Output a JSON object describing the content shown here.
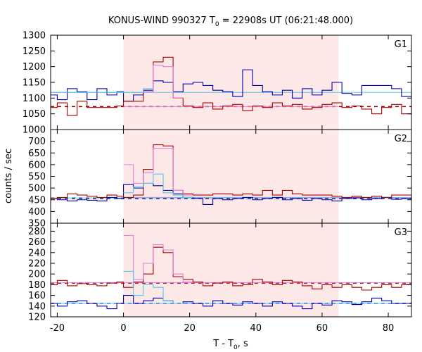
{
  "chart_data": {
    "type": "line",
    "title": "KONUS-WIND 990327 T",
    "title_sub": "0",
    "title_rest": " = 22908s UT (06:21:48.000)",
    "xlabel": "T - T",
    "xlabel_sub": "0",
    "xlabel_rest": ", s",
    "ylabel": "counts / sec",
    "xlim": [
      -22,
      87
    ],
    "x_ticks": [
      -20,
      0,
      20,
      40,
      60,
      80
    ],
    "x_tick_labels": [
      "-20",
      "0",
      "20",
      "40",
      "60",
      "80"
    ],
    "shaded_interval": [
      0,
      65
    ],
    "colors": {
      "shade": "#fde8e8",
      "background_series": "#aa0000",
      "background_level": "#aa0000",
      "total_series": "#0000aa",
      "total_level": "#0000aa",
      "pink_series": "#e080e0",
      "cyan_series": "#55c8e8",
      "pink_level": "#e080e0",
      "cyan_level": "#55c8e8"
    },
    "panels": [
      {
        "label": "G1",
        "ylim": [
          1000,
          1300
        ],
        "y_ticks": [
          1000,
          1050,
          1100,
          1150,
          1200,
          1250,
          1300
        ],
        "y_tick_labels": [
          "1000",
          "1050",
          "1100",
          "1150",
          "1200",
          "1250",
          "1300"
        ],
        "series": [
          {
            "role": "total",
            "x": [
              -22,
              -20,
              -17,
              -14,
              -11,
              -8,
              -5,
              -2,
              0,
              3,
              6,
              9,
              12,
              15,
              18,
              21,
              24,
              27,
              30,
              33,
              36,
              39,
              42,
              45,
              48,
              51,
              54,
              57,
              60,
              63,
              66,
              69,
              72,
              75,
              78,
              81,
              84,
              87
            ],
            "y": [
              1110,
              1095,
              1130,
              1120,
              1095,
              1130,
              1110,
              1120,
              1090,
              1110,
              1125,
              1155,
              1150,
              1120,
              1145,
              1150,
              1140,
              1125,
              1120,
              1105,
              1190,
              1140,
              1120,
              1110,
              1125,
              1100,
              1130,
              1110,
              1125,
              1150,
              1115,
              1110,
              1140,
              1140,
              1140,
              1130,
              1105,
              1135
            ]
          },
          {
            "role": "background",
            "x": [
              -22,
              -20,
              -17,
              -14,
              -11,
              -8,
              -5,
              -2,
              0,
              3,
              6,
              9,
              12,
              15,
              18,
              21,
              24,
              27,
              30,
              33,
              36,
              39,
              42,
              45,
              48,
              51,
              54,
              57,
              60,
              63,
              66,
              69,
              72,
              75,
              78,
              81,
              84,
              87
            ],
            "y": [
              1070,
              1085,
              1045,
              1090,
              1070,
              1070,
              1070,
              1075,
              1090,
              1090,
              1120,
              1215,
              1230,
              1100,
              1075,
              1070,
              1085,
              1065,
              1075,
              1080,
              1060,
              1075,
              1070,
              1085,
              1075,
              1080,
              1065,
              1070,
              1080,
              1085,
              1070,
              1075,
              1065,
              1050,
              1070,
              1080,
              1050,
              1075
            ]
          },
          {
            "role": "pink",
            "x": [
              6,
              9,
              12,
              15
            ],
            "y": [
              1120,
              1205,
              1200,
              1100
            ]
          },
          {
            "role": "cyan",
            "x": [
              -22,
              0,
              3,
              6
            ],
            "y": [
              1118,
              1118,
              1118,
              1130
            ]
          }
        ],
        "levels": [
          {
            "role": "background_level",
            "value": 1073,
            "x_from": -22,
            "x_to": 87,
            "style": "dashed"
          },
          {
            "role": "cyan_level",
            "value": 1118,
            "x_from": -22,
            "x_to": 87,
            "style": "solid"
          },
          {
            "role": "pink_level",
            "value": 1073,
            "x_from": 0,
            "x_to": 65,
            "style": "solid"
          }
        ]
      },
      {
        "label": "G2",
        "ylim": [
          350,
          750
        ],
        "y_ticks": [
          350,
          400,
          450,
          500,
          550,
          600,
          650,
          700
        ],
        "y_tick_labels": [
          "350",
          "400",
          "450",
          "500",
          "550",
          "600",
          "650",
          "700"
        ],
        "series": [
          {
            "role": "total",
            "x": [
              -22,
              -20,
              -17,
              -14,
              -11,
              -8,
              -5,
              -2,
              0,
              3,
              6,
              9,
              12,
              15,
              18,
              21,
              24,
              27,
              30,
              33,
              36,
              39,
              42,
              45,
              48,
              51,
              54,
              57,
              60,
              63,
              66,
              69,
              72,
              75,
              78,
              81,
              84,
              87
            ],
            "y": [
              455,
              450,
              445,
              450,
              448,
              445,
              460,
              455,
              515,
              500,
              520,
              510,
              490,
              475,
              460,
              455,
              430,
              455,
              450,
              455,
              460,
              450,
              455,
              460,
              450,
              455,
              448,
              455,
              450,
              445,
              455,
              458,
              450,
              455,
              460,
              452,
              455,
              460
            ]
          },
          {
            "role": "background",
            "x": [
              -22,
              -20,
              -17,
              -14,
              -11,
              -8,
              -5,
              -2,
              0,
              3,
              6,
              9,
              12,
              15,
              18,
              21,
              24,
              27,
              30,
              33,
              36,
              39,
              42,
              45,
              48,
              51,
              54,
              57,
              60,
              63,
              66,
              69,
              72,
              75,
              78,
              81,
              84,
              87
            ],
            "y": [
              455,
              460,
              475,
              470,
              465,
              460,
              470,
              465,
              460,
              470,
              580,
              685,
              680,
              490,
              475,
              470,
              470,
              475,
              475,
              470,
              475,
              470,
              490,
              470,
              490,
              475,
              470,
              470,
              470,
              465,
              460,
              465,
              460,
              465,
              460,
              470,
              470,
              455
            ]
          },
          {
            "role": "pink",
            "x": [
              0,
              3,
              6,
              9,
              12,
              15,
              18
            ],
            "y": [
              600,
              520,
              565,
              670,
              670,
              490,
              470
            ]
          },
          {
            "role": "cyan",
            "x": [
              0,
              3,
              6,
              9,
              12,
              15,
              18
            ],
            "y": [
              480,
              505,
              520,
              560,
              480,
              470,
              460
            ]
          }
        ],
        "levels": [
          {
            "role": "total_level",
            "value": 455,
            "x_from": -22,
            "x_to": 87,
            "style": "dashed"
          },
          {
            "role": "background_level",
            "value": 458,
            "x_from": -22,
            "x_to": 87,
            "style": "dashed"
          },
          {
            "role": "pink_level",
            "value": 460,
            "x_from": 0,
            "x_to": 87,
            "style": "solid"
          },
          {
            "role": "cyan_level",
            "value": 458,
            "x_from": -22,
            "x_to": 87,
            "style": "solid"
          }
        ]
      },
      {
        "label": "G3",
        "ylim": [
          120,
          295
        ],
        "y_ticks": [
          120,
          140,
          160,
          180,
          200,
          220,
          240,
          260,
          280
        ],
        "y_tick_labels": [
          "120",
          "140",
          "160",
          "180",
          "200",
          "220",
          "240",
          "260",
          "280"
        ],
        "series": [
          {
            "role": "total",
            "x": [
              -22,
              -20,
              -17,
              -14,
              -11,
              -8,
              -5,
              -2,
              0,
              3,
              6,
              9,
              12,
              15,
              18,
              21,
              24,
              27,
              30,
              33,
              36,
              39,
              42,
              45,
              48,
              51,
              54,
              57,
              60,
              63,
              66,
              69,
              72,
              75,
              78,
              81,
              84,
              87
            ],
            "y": [
              145,
              140,
              148,
              150,
              145,
              140,
              135,
              145,
              160,
              145,
              150,
              155,
              150,
              145,
              148,
              145,
              140,
              150,
              145,
              142,
              148,
              145,
              140,
              148,
              145,
              140,
              135,
              145,
              142,
              150,
              148,
              143,
              148,
              155,
              150,
              145,
              145,
              148
            ]
          },
          {
            "role": "background",
            "x": [
              -22,
              -20,
              -17,
              -14,
              -11,
              -8,
              -5,
              -2,
              0,
              3,
              6,
              9,
              12,
              15,
              18,
              21,
              24,
              27,
              30,
              33,
              36,
              39,
              42,
              45,
              48,
              51,
              54,
              57,
              60,
              63,
              66,
              69,
              72,
              75,
              78,
              81,
              84,
              87
            ],
            "y": [
              180,
              188,
              178,
              182,
              180,
              178,
              183,
              185,
              175,
              185,
              200,
              250,
              240,
              195,
              190,
              185,
              178,
              183,
              185,
              178,
              180,
              190,
              185,
              180,
              188,
              185,
              178,
              172,
              180,
              175,
              180,
              175,
              170,
              175,
              180,
              175,
              180,
              182
            ]
          },
          {
            "role": "pink",
            "x": [
              0,
              3,
              6,
              9,
              12,
              15,
              18
            ],
            "y": [
              272,
              190,
              220,
              255,
              245,
              200,
              185
            ]
          },
          {
            "role": "cyan",
            "x": [
              0,
              3,
              6,
              9,
              12,
              15
            ],
            "y": [
              205,
              160,
              180,
              175,
              150,
              145
            ]
          }
        ],
        "levels": [
          {
            "role": "total_level",
            "value": 145,
            "x_from": -22,
            "x_to": 87,
            "style": "dashed"
          },
          {
            "role": "background_level",
            "value": 183,
            "x_from": -22,
            "x_to": 87,
            "style": "dashed"
          },
          {
            "role": "pink_level",
            "value": 184,
            "x_from": -22,
            "x_to": 87,
            "style": "solid"
          },
          {
            "role": "cyan_level",
            "value": 145,
            "x_from": -22,
            "x_to": 87,
            "style": "solid"
          }
        ]
      }
    ]
  }
}
